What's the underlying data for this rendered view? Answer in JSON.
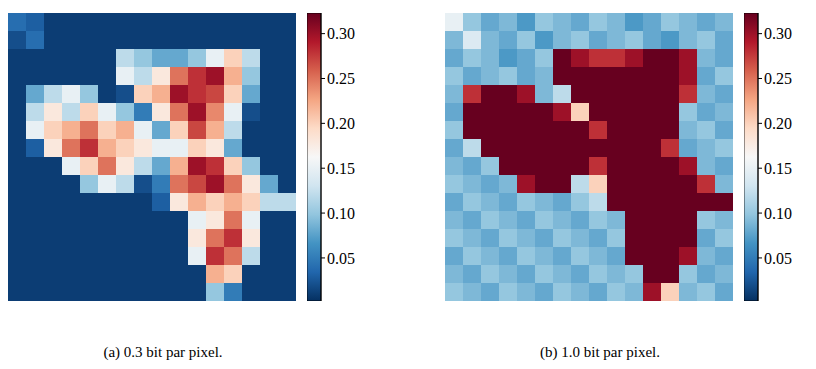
{
  "chart_data": [
    {
      "type": "heatmap",
      "caption": "(a) 0.3 bit par pixel.",
      "tick_labels": false,
      "cells": [
        [
          0.04,
          0.03,
          0.01,
          0.01,
          0.01,
          0.01,
          0.01,
          0.01,
          0.01,
          0.01,
          0.01,
          0.01,
          0.01,
          0.01,
          0.01,
          0.01
        ],
        [
          0.02,
          0.04,
          0.01,
          0.01,
          0.01,
          0.01,
          0.01,
          0.01,
          0.01,
          0.01,
          0.01,
          0.01,
          0.01,
          0.01,
          0.01,
          0.01
        ],
        [
          0.01,
          0.01,
          0.01,
          0.01,
          0.01,
          0.01,
          0.12,
          0.1,
          0.08,
          0.08,
          0.1,
          0.15,
          0.2,
          0.12,
          0.01,
          0.01
        ],
        [
          0.01,
          0.01,
          0.01,
          0.01,
          0.01,
          0.01,
          0.15,
          0.12,
          0.18,
          0.25,
          0.28,
          0.3,
          0.22,
          0.1,
          0.01,
          0.01
        ],
        [
          0.01,
          0.08,
          0.12,
          0.15,
          0.1,
          0.01,
          0.02,
          0.2,
          0.22,
          0.3,
          0.28,
          0.27,
          0.2,
          0.08,
          0.01,
          0.01
        ],
        [
          0.01,
          0.12,
          0.18,
          0.12,
          0.2,
          0.15,
          0.1,
          0.05,
          0.18,
          0.25,
          0.3,
          0.24,
          0.15,
          0.02,
          0.01,
          0.01
        ],
        [
          0.01,
          0.15,
          0.2,
          0.22,
          0.25,
          0.2,
          0.22,
          0.15,
          0.08,
          0.2,
          0.27,
          0.22,
          0.12,
          0.01,
          0.01,
          0.01
        ],
        [
          0.01,
          0.03,
          0.18,
          0.25,
          0.28,
          0.22,
          0.2,
          0.18,
          0.15,
          0.15,
          0.2,
          0.18,
          0.08,
          0.01,
          0.01,
          0.01
        ],
        [
          0.01,
          0.01,
          0.01,
          0.15,
          0.2,
          0.25,
          0.18,
          0.12,
          0.08,
          0.22,
          0.3,
          0.28,
          0.2,
          0.1,
          0.01,
          0.01
        ],
        [
          0.01,
          0.01,
          0.01,
          0.01,
          0.1,
          0.15,
          0.12,
          0.02,
          0.05,
          0.25,
          0.27,
          0.3,
          0.25,
          0.18,
          0.08,
          0.01
        ],
        [
          0.01,
          0.01,
          0.01,
          0.01,
          0.01,
          0.01,
          0.01,
          0.01,
          0.03,
          0.18,
          0.22,
          0.2,
          0.22,
          0.2,
          0.12,
          0.12
        ],
        [
          0.01,
          0.01,
          0.01,
          0.01,
          0.01,
          0.01,
          0.01,
          0.01,
          0.01,
          0.01,
          0.15,
          0.18,
          0.25,
          0.15,
          0.01,
          0.01
        ],
        [
          0.01,
          0.01,
          0.01,
          0.01,
          0.01,
          0.01,
          0.01,
          0.01,
          0.01,
          0.01,
          0.18,
          0.25,
          0.28,
          0.18,
          0.01,
          0.01
        ],
        [
          0.01,
          0.01,
          0.01,
          0.01,
          0.01,
          0.01,
          0.01,
          0.01,
          0.01,
          0.01,
          0.15,
          0.28,
          0.25,
          0.12,
          0.01,
          0.01
        ],
        [
          0.01,
          0.01,
          0.01,
          0.01,
          0.01,
          0.01,
          0.01,
          0.01,
          0.01,
          0.01,
          0.01,
          0.22,
          0.2,
          0.01,
          0.01,
          0.01
        ],
        [
          0.01,
          0.01,
          0.01,
          0.01,
          0.01,
          0.01,
          0.01,
          0.01,
          0.01,
          0.01,
          0.01,
          0.1,
          0.05,
          0.01,
          0.01,
          0.01
        ]
      ],
      "colorbar_range": [
        0.002,
        0.323
      ],
      "colorbar_ticks": [
        0.05,
        {
          "value": 0.1,
          "label": "0.10"
        },
        0.15,
        {
          "value": 0.2,
          "label": "0.20"
        },
        0.25,
        {
          "value": 0.3,
          "label": "0.30"
        }
      ]
    },
    {
      "type": "heatmap",
      "caption": "(b) 1.0 bit par pixel.",
      "tick_labels": false,
      "cells": [
        [
          0.15,
          0.1,
          0.08,
          0.09,
          0.07,
          0.1,
          0.09,
          0.08,
          0.1,
          0.09,
          0.07,
          0.08,
          0.1,
          0.09,
          0.08,
          0.09
        ],
        [
          0.09,
          0.14,
          0.09,
          0.08,
          0.1,
          0.07,
          0.09,
          0.1,
          0.08,
          0.09,
          0.1,
          0.08,
          0.07,
          0.09,
          0.1,
          0.08
        ],
        [
          0.08,
          0.1,
          0.09,
          0.07,
          0.08,
          0.1,
          0.33,
          0.3,
          0.28,
          0.28,
          0.3,
          0.33,
          0.33,
          0.3,
          0.09,
          0.08
        ],
        [
          0.1,
          0.08,
          0.09,
          0.1,
          0.08,
          0.09,
          0.33,
          0.33,
          0.33,
          0.33,
          0.33,
          0.33,
          0.33,
          0.3,
          0.08,
          0.1
        ],
        [
          0.09,
          0.28,
          0.33,
          0.33,
          0.3,
          0.09,
          0.12,
          0.33,
          0.33,
          0.33,
          0.33,
          0.33,
          0.33,
          0.28,
          0.09,
          0.08
        ],
        [
          0.08,
          0.33,
          0.33,
          0.33,
          0.33,
          0.33,
          0.3,
          0.2,
          0.33,
          0.33,
          0.33,
          0.33,
          0.33,
          0.1,
          0.08,
          0.09
        ],
        [
          0.1,
          0.33,
          0.33,
          0.33,
          0.33,
          0.33,
          0.33,
          0.33,
          0.28,
          0.33,
          0.33,
          0.33,
          0.33,
          0.09,
          0.1,
          0.08
        ],
        [
          0.08,
          0.12,
          0.33,
          0.33,
          0.33,
          0.33,
          0.33,
          0.33,
          0.33,
          0.33,
          0.33,
          0.33,
          0.28,
          0.08,
          0.09,
          0.1
        ],
        [
          0.09,
          0.08,
          0.1,
          0.33,
          0.33,
          0.33,
          0.33,
          0.33,
          0.28,
          0.33,
          0.33,
          0.33,
          0.33,
          0.3,
          0.09,
          0.08
        ],
        [
          0.1,
          0.09,
          0.08,
          0.09,
          0.3,
          0.33,
          0.33,
          0.12,
          0.2,
          0.33,
          0.33,
          0.33,
          0.33,
          0.33,
          0.28,
          0.09
        ],
        [
          0.08,
          0.1,
          0.09,
          0.08,
          0.1,
          0.09,
          0.08,
          0.1,
          0.12,
          0.33,
          0.33,
          0.33,
          0.33,
          0.33,
          0.33,
          0.33
        ],
        [
          0.09,
          0.08,
          0.1,
          0.09,
          0.08,
          0.1,
          0.09,
          0.08,
          0.1,
          0.09,
          0.33,
          0.33,
          0.33,
          0.33,
          0.1,
          0.09
        ],
        [
          0.1,
          0.09,
          0.08,
          0.1,
          0.09,
          0.08,
          0.1,
          0.09,
          0.08,
          0.1,
          0.33,
          0.33,
          0.33,
          0.33,
          0.08,
          0.1
        ],
        [
          0.08,
          0.1,
          0.09,
          0.08,
          0.1,
          0.09,
          0.08,
          0.1,
          0.09,
          0.08,
          0.33,
          0.33,
          0.33,
          0.3,
          0.09,
          0.08
        ],
        [
          0.09,
          0.08,
          0.1,
          0.09,
          0.08,
          0.1,
          0.09,
          0.08,
          0.1,
          0.09,
          0.1,
          0.33,
          0.33,
          0.1,
          0.08,
          0.09
        ],
        [
          0.1,
          0.09,
          0.08,
          0.1,
          0.09,
          0.08,
          0.1,
          0.09,
          0.08,
          0.1,
          0.09,
          0.3,
          0.2,
          0.09,
          0.1,
          0.08
        ]
      ],
      "colorbar_range": [
        0.002,
        0.323
      ],
      "colorbar_ticks": [
        0.05,
        {
          "value": 0.1,
          "label": "0.10"
        },
        0.15,
        {
          "value": 0.2,
          "label": "0.20"
        },
        0.25,
        {
          "value": 0.3,
          "label": "0.30"
        }
      ]
    }
  ]
}
